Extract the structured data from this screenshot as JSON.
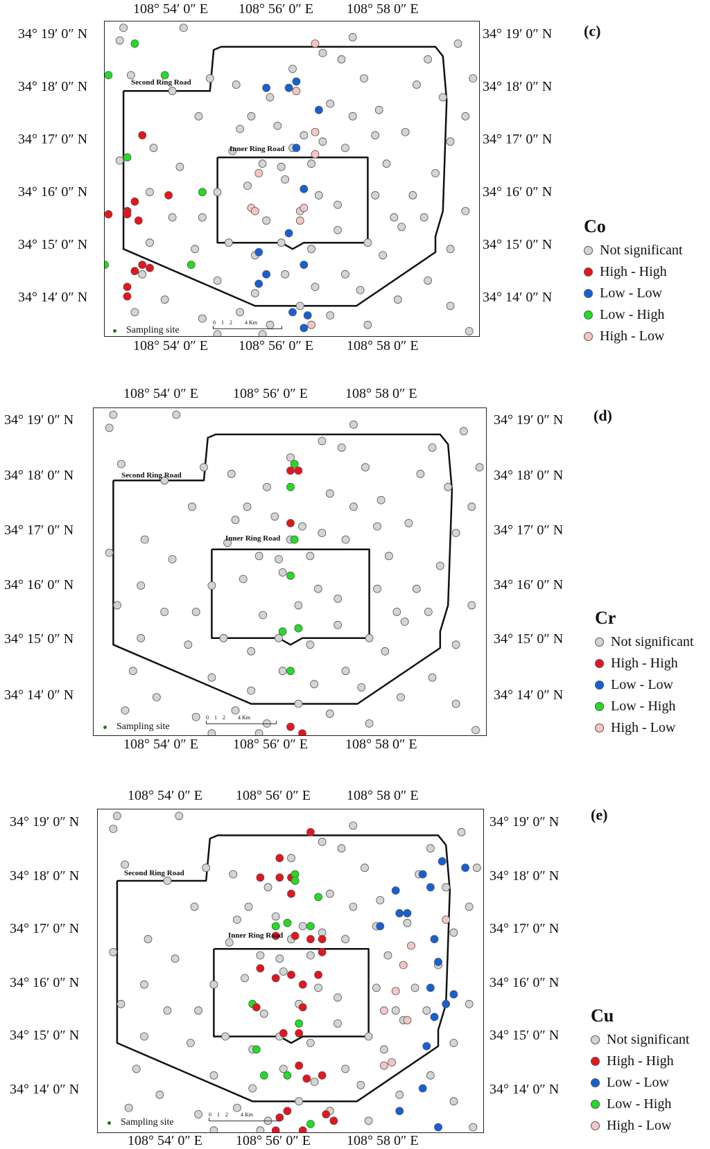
{
  "panels": [
    {
      "letter": "(c)",
      "element": "Co",
      "top_lon": [
        "108° 54′ 0″ E",
        "108° 56′ 0″ E",
        "108° 58 0″ E"
      ],
      "bottom_lon": [
        "108° 54′ 0″ E",
        "108° 56′ 0″ E",
        "108° 58 0″ E"
      ],
      "lat": [
        "34° 19′ 0″ N",
        "34° 18′ 0″ N",
        "34° 17′ 0″ N",
        "34° 16′ 0″ N",
        "34° 15′ 0″ N",
        "34° 14′ 0″ N"
      ],
      "road_outer": "Second Ring Road",
      "road_inner": "Inner Ring Road",
      "sampling": "Sampling site",
      "scale": "0    1    2         4 Km",
      "legend": [
        "Not significant",
        "High - High",
        "Low - Low",
        "Low - High",
        "High - Low"
      ]
    },
    {
      "letter": "(d)",
      "element": "Cr",
      "top_lon": [
        "108° 54′ 0″ E",
        "108° 56′ 0″ E",
        "108° 58 0″ E"
      ],
      "bottom_lon": [
        "108° 54′ 0″ E",
        "108° 56′ 0″ E",
        "108° 58 0″ E"
      ],
      "lat": [
        "34° 19′ 0″ N",
        "34° 18′ 0″ N",
        "34° 17′ 0″ N",
        "34° 16′ 0″ N",
        "34° 15′ 0″ N",
        "34° 14′ 0″ N"
      ],
      "road_outer": "Second Ring Road",
      "road_inner": "Inner Ring Road",
      "sampling": "Sampling site",
      "scale": "0    1    2         4 Km",
      "legend": [
        "Not significant",
        "High - High",
        "Low - Low",
        "Low - High",
        "High - Low"
      ]
    },
    {
      "letter": "(e)",
      "element": "Cu",
      "top_lon": [
        "108° 54′ 0″ E",
        "108° 56′ 0″ E",
        "108° 58 0″ E"
      ],
      "bottom_lon": [
        "108° 54′ 0″ E",
        "108° 56′ 0″ E",
        "108° 58 0″ E"
      ],
      "lat": [
        "34° 19′ 0″ N",
        "34° 18′ 0″ N",
        "34° 17′ 0″ N",
        "34° 16′ 0″ N",
        "34° 15′ 0″ N",
        "34° 14′ 0″ N"
      ],
      "road_outer": "Second Ring Road",
      "road_inner": "Inner Ring Road",
      "sampling": "Sampling site",
      "scale": "0    1    2         4 Km",
      "legend": [
        "Not significant",
        "High - High",
        "Low - Low",
        "Low - High",
        "High - Low"
      ]
    }
  ],
  "colors": {
    "not_significant": "#d4d4d4",
    "high_high": "#e8141c",
    "low_low": "#1560d8",
    "low_high": "#22dd22",
    "high_low": "#f7c4c4"
  }
}
